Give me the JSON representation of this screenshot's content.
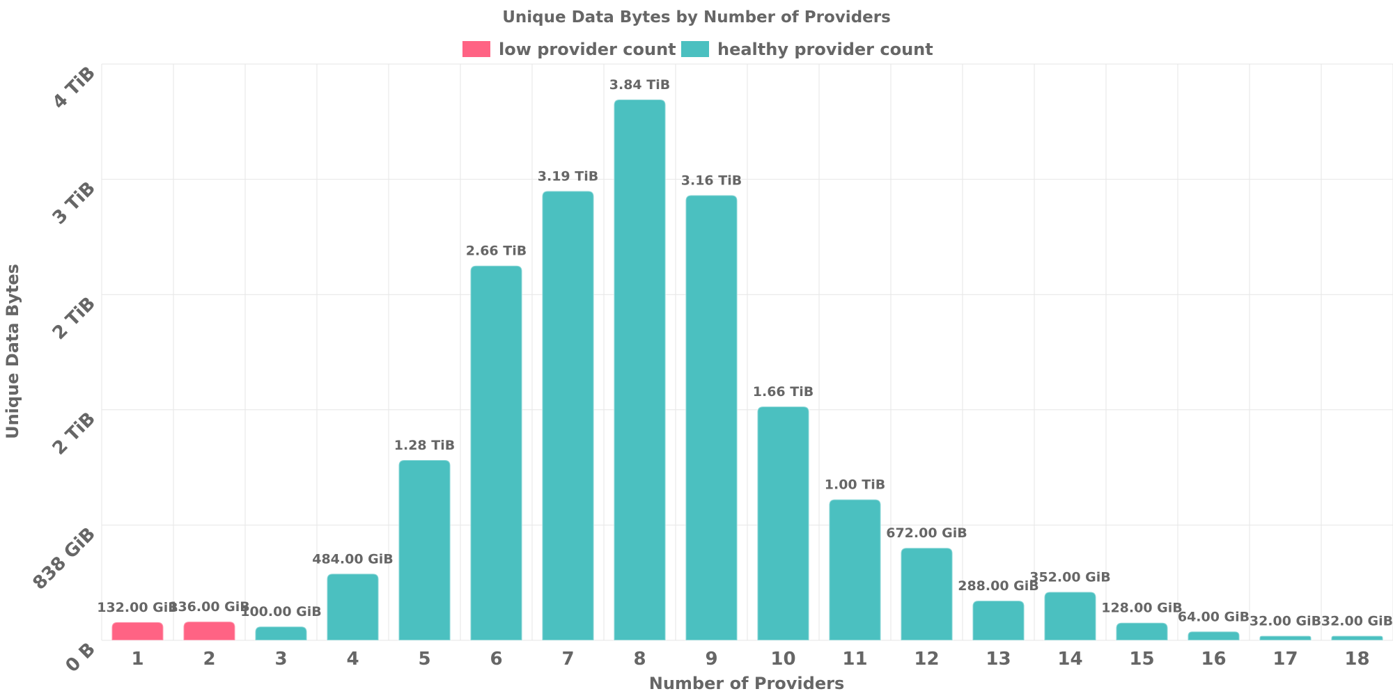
{
  "chart_data": {
    "type": "bar",
    "title": "Unique Data Bytes by Number of Providers",
    "xlabel": "Number of Providers",
    "ylabel": "Unique Data Bytes",
    "categories": [
      "1",
      "2",
      "3",
      "4",
      "5",
      "6",
      "7",
      "8",
      "9",
      "10",
      "11",
      "12",
      "13",
      "14",
      "15",
      "16",
      "17",
      "18"
    ],
    "values_gib": [
      132,
      136,
      100,
      484,
      1310.72,
      2723.84,
      3266.56,
      3932.16,
      3235.84,
      1699.84,
      1024,
      672,
      288,
      352,
      128,
      64,
      32,
      32
    ],
    "data_labels": [
      "132.00 GiB",
      "136.00 GiB",
      "100.00 GiB",
      "484.00 GiB",
      "1.28 TiB",
      "2.66 TiB",
      "3.19 TiB",
      "3.84 TiB",
      "3.16 TiB",
      "1.66 TiB",
      "1.00 TiB",
      "672.00 GiB",
      "288.00 GiB",
      "352.00 GiB",
      "128.00 GiB",
      "64.00 GiB",
      "32.00 GiB",
      "32.00 GiB"
    ],
    "series_membership": [
      "low",
      "low",
      "healthy",
      "healthy",
      "healthy",
      "healthy",
      "healthy",
      "healthy",
      "healthy",
      "healthy",
      "healthy",
      "healthy",
      "healthy",
      "healthy",
      "healthy",
      "healthy",
      "healthy",
      "healthy"
    ],
    "legend": [
      {
        "key": "low",
        "name": "low provider count",
        "color": "#ff6384"
      },
      {
        "key": "healthy",
        "name": "healthy provider count",
        "color": "#4bc0c0"
      }
    ],
    "yticks": [
      {
        "value_gib": 0,
        "label": "0 B"
      },
      {
        "value_gib": 838,
        "label": "838 GiB"
      },
      {
        "value_gib": 1676,
        "label": "2 TiB"
      },
      {
        "value_gib": 2514,
        "label": "2 TiB"
      },
      {
        "value_gib": 3352,
        "label": "3 TiB"
      },
      {
        "value_gib": 4190,
        "label": "4 TiB"
      }
    ],
    "ylim_gib": [
      0,
      4190
    ],
    "legend_position": "top-center",
    "grid": true
  }
}
